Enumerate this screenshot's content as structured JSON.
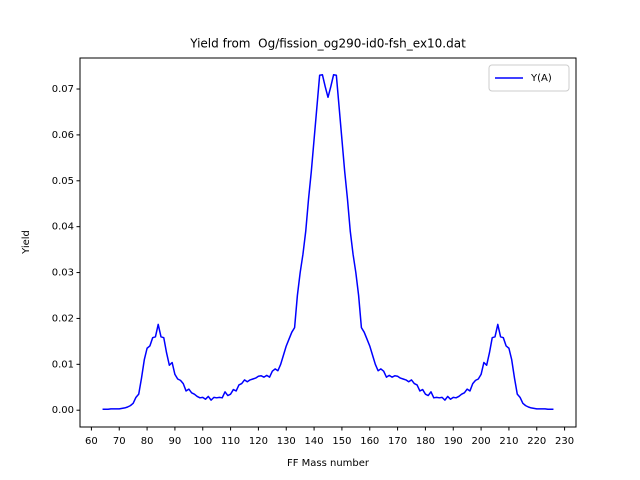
{
  "chart_data": {
    "type": "line",
    "title": "Yield from  Og/fission_og290-id0-fsh_ex10.dat",
    "x_label": "FF Mass number",
    "y_label": "Yield",
    "x": [
      64,
      65,
      66,
      67,
      68,
      69,
      70,
      71,
      72,
      73,
      74,
      75,
      76,
      77,
      78,
      79,
      80,
      81,
      82,
      83,
      84,
      85,
      86,
      87,
      88,
      89,
      90,
      91,
      92,
      93,
      94,
      95,
      96,
      97,
      98,
      99,
      100,
      101,
      102,
      103,
      104,
      105,
      106,
      107,
      108,
      109,
      110,
      111,
      112,
      113,
      114,
      115,
      116,
      117,
      118,
      119,
      120,
      121,
      122,
      123,
      124,
      125,
      126,
      127,
      128,
      129,
      130,
      131,
      132,
      133,
      134,
      135,
      136,
      137,
      138,
      139,
      140,
      141,
      142,
      143,
      144,
      145,
      146,
      147,
      148,
      149,
      150,
      151,
      152,
      153,
      154,
      155,
      156,
      157,
      158,
      159,
      160,
      161,
      162,
      163,
      164,
      165,
      166,
      167,
      168,
      169,
      170,
      171,
      172,
      173,
      174,
      175,
      176,
      177,
      178,
      179,
      180,
      181,
      182,
      183,
      184,
      185,
      186,
      187,
      188,
      189,
      190,
      191,
      192,
      193,
      194,
      195,
      196,
      197,
      198,
      199,
      200,
      201,
      202,
      203,
      204,
      205,
      206,
      207,
      208,
      209,
      210,
      211,
      212,
      213,
      214,
      215,
      216,
      217,
      218,
      219,
      220,
      221,
      222,
      223,
      224,
      225,
      226
    ],
    "series": [
      {
        "name": "Y(A)",
        "color": "#0000ff",
        "values": [
          0.0002,
          0.0002,
          0.0002,
          0.0003,
          0.0003,
          0.0003,
          0.0003,
          0.0004,
          0.0005,
          0.0007,
          0.001,
          0.0015,
          0.0028,
          0.0035,
          0.007,
          0.011,
          0.0135,
          0.014,
          0.0158,
          0.016,
          0.0187,
          0.016,
          0.0158,
          0.0125,
          0.0098,
          0.0104,
          0.0078,
          0.0068,
          0.0065,
          0.0058,
          0.0042,
          0.0046,
          0.0038,
          0.0035,
          0.003,
          0.0027,
          0.0028,
          0.0024,
          0.003,
          0.0022,
          0.0028,
          0.0027,
          0.0028,
          0.0027,
          0.004,
          0.0032,
          0.0035,
          0.0045,
          0.0042,
          0.0055,
          0.0058,
          0.0066,
          0.0062,
          0.0066,
          0.0068,
          0.007,
          0.0074,
          0.0075,
          0.0072,
          0.0076,
          0.0072,
          0.0085,
          0.009,
          0.0086,
          0.01,
          0.012,
          0.014,
          0.0155,
          0.017,
          0.018,
          0.025,
          0.03,
          0.034,
          0.039,
          0.046,
          0.052,
          0.059,
          0.066,
          0.073,
          0.0731,
          0.0705,
          0.0682,
          0.0705,
          0.0731,
          0.073,
          0.066,
          0.059,
          0.052,
          0.046,
          0.039,
          0.034,
          0.03,
          0.025,
          0.018,
          0.017,
          0.0155,
          0.014,
          0.012,
          0.01,
          0.0086,
          0.009,
          0.0085,
          0.0072,
          0.0076,
          0.0072,
          0.0075,
          0.0074,
          0.007,
          0.0068,
          0.0066,
          0.0062,
          0.0066,
          0.0058,
          0.0055,
          0.0042,
          0.0045,
          0.0035,
          0.0032,
          0.004,
          0.0027,
          0.0028,
          0.0027,
          0.0028,
          0.0022,
          0.003,
          0.0024,
          0.0028,
          0.0027,
          0.003,
          0.0035,
          0.0038,
          0.0046,
          0.0042,
          0.0058,
          0.0065,
          0.0068,
          0.0078,
          0.0104,
          0.0098,
          0.0125,
          0.0158,
          0.016,
          0.0187,
          0.016,
          0.0158,
          0.014,
          0.0135,
          0.011,
          0.007,
          0.0035,
          0.0028,
          0.0015,
          0.001,
          0.0007,
          0.0005,
          0.0004,
          0.0003,
          0.0003,
          0.0003,
          0.0003,
          0.0002,
          0.0002,
          0.0002
        ]
      }
    ],
    "xlim": [
      55.9,
      234.1
    ],
    "ylim": [
      -0.00366,
      0.07676
    ],
    "xticks": [
      60,
      70,
      80,
      90,
      100,
      110,
      120,
      130,
      140,
      150,
      160,
      170,
      180,
      190,
      200,
      210,
      220,
      230
    ],
    "yticks": [
      {
        "value": 0,
        "label": "0.00"
      },
      {
        "value": 0.01,
        "label": "0.01"
      },
      {
        "value": 0.02,
        "label": "0.02"
      },
      {
        "value": 0.03,
        "label": "0.03"
      },
      {
        "value": 0.04,
        "label": "0.04"
      },
      {
        "value": 0.05,
        "label": "0.05"
      },
      {
        "value": 0.06,
        "label": "0.06"
      },
      {
        "value": 0.07,
        "label": "0.07"
      }
    ],
    "legend": "upper right"
  }
}
